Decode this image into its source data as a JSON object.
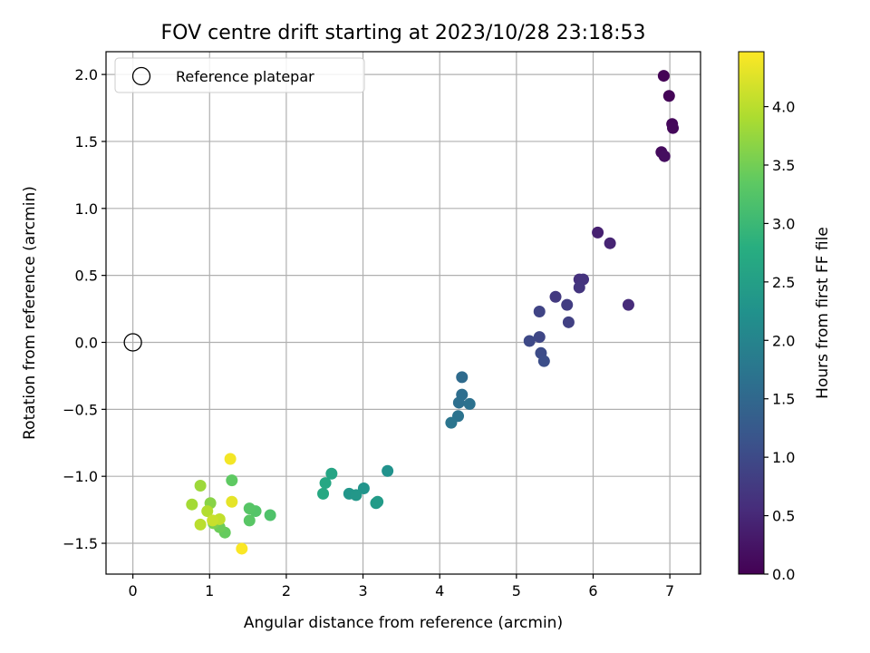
{
  "chart_data": {
    "type": "scatter",
    "title": "FOV centre drift starting at 2023/10/28 23:18:53",
    "xlabel": "Angular distance from reference (arcmin)",
    "ylabel": "Rotation from reference (arcmin)",
    "xlim": [
      -0.35,
      7.4
    ],
    "ylim": [
      -1.73,
      2.17
    ],
    "xticks": [
      0,
      1,
      2,
      3,
      4,
      5,
      6,
      7
    ],
    "xtick_labels": [
      "0",
      "1",
      "2",
      "3",
      "4",
      "5",
      "6",
      "7"
    ],
    "yticks": [
      -1.5,
      -1.0,
      -0.5,
      0.0,
      0.5,
      1.0,
      1.5,
      2.0
    ],
    "ytick_labels": [
      "−1.5",
      "−1.0",
      "−0.5",
      "0.0",
      "0.5",
      "1.0",
      "1.5",
      "2.0"
    ],
    "grid": true,
    "legend": {
      "placement": "upper-left",
      "entries": [
        "Reference platepar"
      ]
    },
    "reference_point": {
      "x": 0,
      "y": 0,
      "label": "Reference platepar"
    },
    "colorbar": {
      "label": "Hours from first FF file",
      "colormap": "viridis",
      "range": [
        0,
        4.47
      ],
      "ticks": [
        0.0,
        0.5,
        1.0,
        1.5,
        2.0,
        2.5,
        3.0,
        3.5,
        4.0
      ],
      "tick_labels": [
        "0.0",
        "0.5",
        "1.0",
        "1.5",
        "2.0",
        "2.5",
        "3.0",
        "3.5",
        "4.0"
      ]
    },
    "series": [
      {
        "points": [
          {
            "x": 6.92,
            "y": 1.99,
            "c": 0.02
          },
          {
            "x": 6.99,
            "y": 1.84,
            "c": 0.05
          },
          {
            "x": 7.03,
            "y": 1.63,
            "c": 0.08
          },
          {
            "x": 7.04,
            "y": 1.6,
            "c": 0.1
          },
          {
            "x": 6.89,
            "y": 1.42,
            "c": 0.13
          },
          {
            "x": 6.93,
            "y": 1.39,
            "c": 0.16
          },
          {
            "x": 6.06,
            "y": 0.82,
            "c": 0.4
          },
          {
            "x": 6.22,
            "y": 0.74,
            "c": 0.45
          },
          {
            "x": 6.46,
            "y": 0.28,
            "c": 0.55
          },
          {
            "x": 5.82,
            "y": 0.47,
            "c": 0.62
          },
          {
            "x": 5.87,
            "y": 0.47,
            "c": 0.65
          },
          {
            "x": 5.82,
            "y": 0.41,
            "c": 0.68
          },
          {
            "x": 5.51,
            "y": 0.34,
            "c": 0.75
          },
          {
            "x": 5.66,
            "y": 0.28,
            "c": 0.8
          },
          {
            "x": 5.68,
            "y": 0.15,
            "c": 0.84
          },
          {
            "x": 5.3,
            "y": 0.23,
            "c": 0.9
          },
          {
            "x": 5.3,
            "y": 0.04,
            "c": 0.95
          },
          {
            "x": 5.17,
            "y": 0.01,
            "c": 0.98
          },
          {
            "x": 5.32,
            "y": -0.08,
            "c": 1.02
          },
          {
            "x": 5.36,
            "y": -0.14,
            "c": 1.05
          },
          {
            "x": 4.29,
            "y": -0.26,
            "c": 1.55
          },
          {
            "x": 4.29,
            "y": -0.39,
            "c": 1.6
          },
          {
            "x": 4.25,
            "y": -0.45,
            "c": 1.63
          },
          {
            "x": 4.39,
            "y": -0.46,
            "c": 1.66
          },
          {
            "x": 4.24,
            "y": -0.55,
            "c": 1.7
          },
          {
            "x": 4.15,
            "y": -0.6,
            "c": 1.73
          },
          {
            "x": 3.32,
            "y": -0.96,
            "c": 2.25
          },
          {
            "x": 3.01,
            "y": -1.09,
            "c": 2.3
          },
          {
            "x": 2.82,
            "y": -1.13,
            "c": 2.33
          },
          {
            "x": 2.91,
            "y": -1.14,
            "c": 2.36
          },
          {
            "x": 3.17,
            "y": -1.2,
            "c": 2.4
          },
          {
            "x": 3.19,
            "y": -1.19,
            "c": 2.42
          },
          {
            "x": 2.59,
            "y": -0.98,
            "c": 2.6
          },
          {
            "x": 2.51,
            "y": -1.05,
            "c": 2.65
          },
          {
            "x": 2.48,
            "y": -1.13,
            "c": 2.68
          },
          {
            "x": 1.79,
            "y": -1.29,
            "c": 3.2
          },
          {
            "x": 1.6,
            "y": -1.26,
            "c": 3.25
          },
          {
            "x": 1.52,
            "y": -1.24,
            "c": 3.28
          },
          {
            "x": 1.52,
            "y": -1.33,
            "c": 3.3
          },
          {
            "x": 1.29,
            "y": -1.03,
            "c": 3.35
          },
          {
            "x": 1.2,
            "y": -1.42,
            "c": 3.4
          },
          {
            "x": 1.13,
            "y": -1.38,
            "c": 3.45
          },
          {
            "x": 1.05,
            "y": -1.35,
            "c": 3.55
          },
          {
            "x": 1.01,
            "y": -1.2,
            "c": 3.65
          },
          {
            "x": 0.88,
            "y": -1.07,
            "c": 3.8
          },
          {
            "x": 0.77,
            "y": -1.21,
            "c": 3.85
          },
          {
            "x": 0.97,
            "y": -1.26,
            "c": 3.95
          },
          {
            "x": 0.88,
            "y": -1.36,
            "c": 4.0
          },
          {
            "x": 1.13,
            "y": -1.32,
            "c": 4.05
          },
          {
            "x": 1.04,
            "y": -1.33,
            "c": 4.1
          },
          {
            "x": 1.29,
            "y": -1.19,
            "c": 4.3
          },
          {
            "x": 1.27,
            "y": -0.87,
            "c": 4.4
          },
          {
            "x": 1.42,
            "y": -1.54,
            "c": 4.45
          }
        ]
      }
    ]
  }
}
